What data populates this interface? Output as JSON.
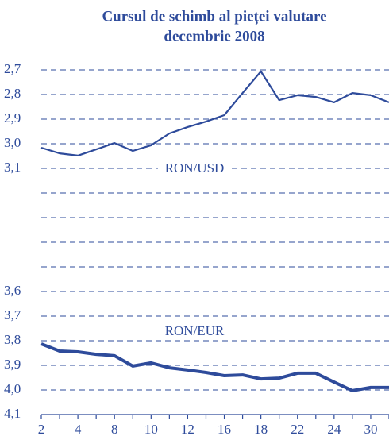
{
  "chart_data": {
    "type": "line",
    "title": [
      "Cursul de schimb al pieței valutare",
      "decembrie 2008"
    ],
    "categories": [
      "2",
      null,
      "4",
      null,
      "8",
      null,
      "10",
      null,
      "12",
      null,
      "16",
      null,
      "18",
      null,
      "22",
      null,
      "24",
      null,
      "30",
      null
    ],
    "series": [
      {
        "name": "RON/USD",
        "color": "#2e4b9b",
        "values": [
          3.016,
          3.039,
          3.048,
          3.023,
          2.997,
          3.029,
          3.006,
          2.958,
          2.932,
          2.91,
          2.884,
          2.794,
          2.706,
          2.823,
          2.803,
          2.81,
          2.832,
          2.794,
          2.803,
          2.832
        ]
      },
      {
        "name": "RON/EUR",
        "color": "#2e4b9b",
        "values": [
          3.813,
          3.842,
          3.845,
          3.855,
          3.861,
          3.903,
          3.89,
          3.91,
          3.919,
          3.929,
          3.942,
          3.939,
          3.955,
          3.952,
          3.932,
          3.932,
          3.968,
          4.003,
          3.99,
          3.99
        ]
      }
    ],
    "ylim": [
      2.7,
      4.1
    ],
    "y_inverted": true,
    "grid": true,
    "yticks": [
      {
        "value": 2.7,
        "label": "2,7"
      },
      {
        "value": 2.8,
        "label": "2,8"
      },
      {
        "value": 2.9,
        "label": "2,9"
      },
      {
        "value": 3.0,
        "label": "3,0"
      },
      {
        "value": 3.1,
        "label": "3,1"
      },
      {
        "value": 3.2,
        "label": null
      },
      {
        "value": 3.3,
        "label": null
      },
      {
        "value": 3.4,
        "label": null
      },
      {
        "value": 3.5,
        "label": null
      },
      {
        "value": 3.6,
        "label": "3,6"
      },
      {
        "value": 3.7,
        "label": "3,7"
      },
      {
        "value": 3.8,
        "label": "3,8"
      },
      {
        "value": 3.9,
        "label": "3,9"
      },
      {
        "value": 4.0,
        "label": "4,0"
      },
      {
        "value": 4.1,
        "label": "4,1"
      }
    ]
  }
}
